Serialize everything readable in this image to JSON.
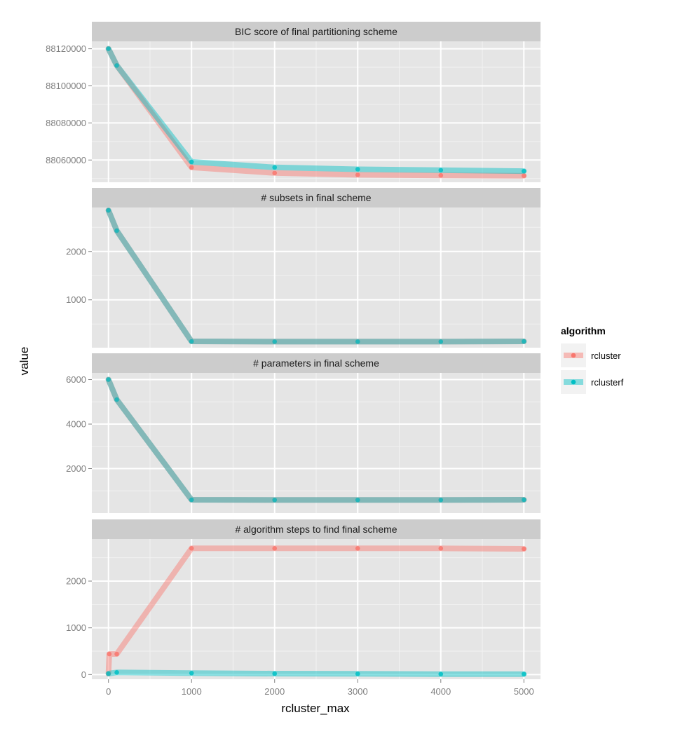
{
  "chart_data": {
    "type": "line",
    "xlabel": "rcluster_max",
    "ylabel": "value",
    "x_ticks": [
      0,
      1000,
      2000,
      3000,
      4000,
      5000
    ],
    "x_tick_labels": [
      "0",
      "1000",
      "2000",
      "3000",
      "4000",
      "5000"
    ],
    "xlim": [
      -200,
      5200
    ],
    "legend": {
      "title": "algorithm",
      "position": "right",
      "entries": [
        "rcluster",
        "rclusterf"
      ]
    },
    "colors": {
      "rcluster": "#f8766d",
      "rclusterf": "#00bfc4"
    },
    "facets": [
      {
        "title": "BIC score of final partitioning scheme",
        "ylim": [
          88048000,
          88124000
        ],
        "y_ticks": [
          88060000,
          88080000,
          88100000,
          88120000
        ],
        "y_tick_labels": [
          "88060000",
          "88080000",
          "88100000",
          "88120000"
        ],
        "series": [
          {
            "name": "rcluster",
            "x": [
              0,
              100,
              1000,
              2000,
              3000,
              4000,
              5000
            ],
            "values": [
              88120000,
              88111000,
              88056000,
              88053000,
              88052000,
              88051700,
              88051500
            ]
          },
          {
            "name": "rclusterf",
            "x": [
              0,
              100,
              1000,
              2000,
              3000,
              4000,
              5000
            ],
            "values": [
              88120000,
              88111000,
              88059000,
              88056000,
              88055000,
              88054500,
              88054000
            ]
          }
        ]
      },
      {
        "title": "# subsets in final scheme",
        "ylim": [
          10,
          2910
        ],
        "y_ticks": [
          1000,
          2000
        ],
        "y_tick_labels": [
          "1000",
          "2000"
        ],
        "series": [
          {
            "name": "rcluster",
            "x": [
              0,
              100,
              1000,
              2000,
              3000,
              4000,
              5000
            ],
            "values": [
              2850,
              2430,
              140,
              135,
              135,
              135,
              140
            ]
          },
          {
            "name": "rclusterf",
            "x": [
              0,
              100,
              1000,
              2000,
              3000,
              4000,
              5000
            ],
            "values": [
              2850,
              2430,
              140,
              135,
              135,
              135,
              140
            ]
          }
        ]
      },
      {
        "title": "# parameters in final scheme",
        "ylim": [
          0,
          6300
        ],
        "y_ticks": [
          2000,
          4000,
          6000
        ],
        "y_tick_labels": [
          "2000",
          "4000",
          "6000"
        ],
        "series": [
          {
            "name": "rcluster",
            "x": [
              0,
              100,
              1000,
              2000,
              3000,
              4000,
              5000
            ],
            "values": [
              6000,
              5100,
              600,
              590,
              590,
              590,
              600
            ]
          },
          {
            "name": "rclusterf",
            "x": [
              0,
              100,
              1000,
              2000,
              3000,
              4000,
              5000
            ],
            "values": [
              6000,
              5100,
              600,
              590,
              590,
              590,
              600
            ]
          }
        ]
      },
      {
        "title": "# algorithm steps to find final scheme",
        "ylim": [
          -100,
          2900
        ],
        "y_ticks": [
          0,
          1000,
          2000
        ],
        "y_tick_labels": [
          "0",
          "1000",
          "2000"
        ],
        "series": [
          {
            "name": "rcluster",
            "x": [
              0,
              10,
              100,
              1000,
              2000,
              3000,
              4000,
              5000
            ],
            "values": [
              20,
              440,
              440,
              2700,
              2700,
              2700,
              2700,
              2690
            ]
          },
          {
            "name": "rclusterf",
            "x": [
              0,
              100,
              1000,
              2000,
              3000,
              4000,
              5000
            ],
            "values": [
              20,
              45,
              30,
              20,
              15,
              10,
              10
            ]
          }
        ]
      }
    ]
  }
}
